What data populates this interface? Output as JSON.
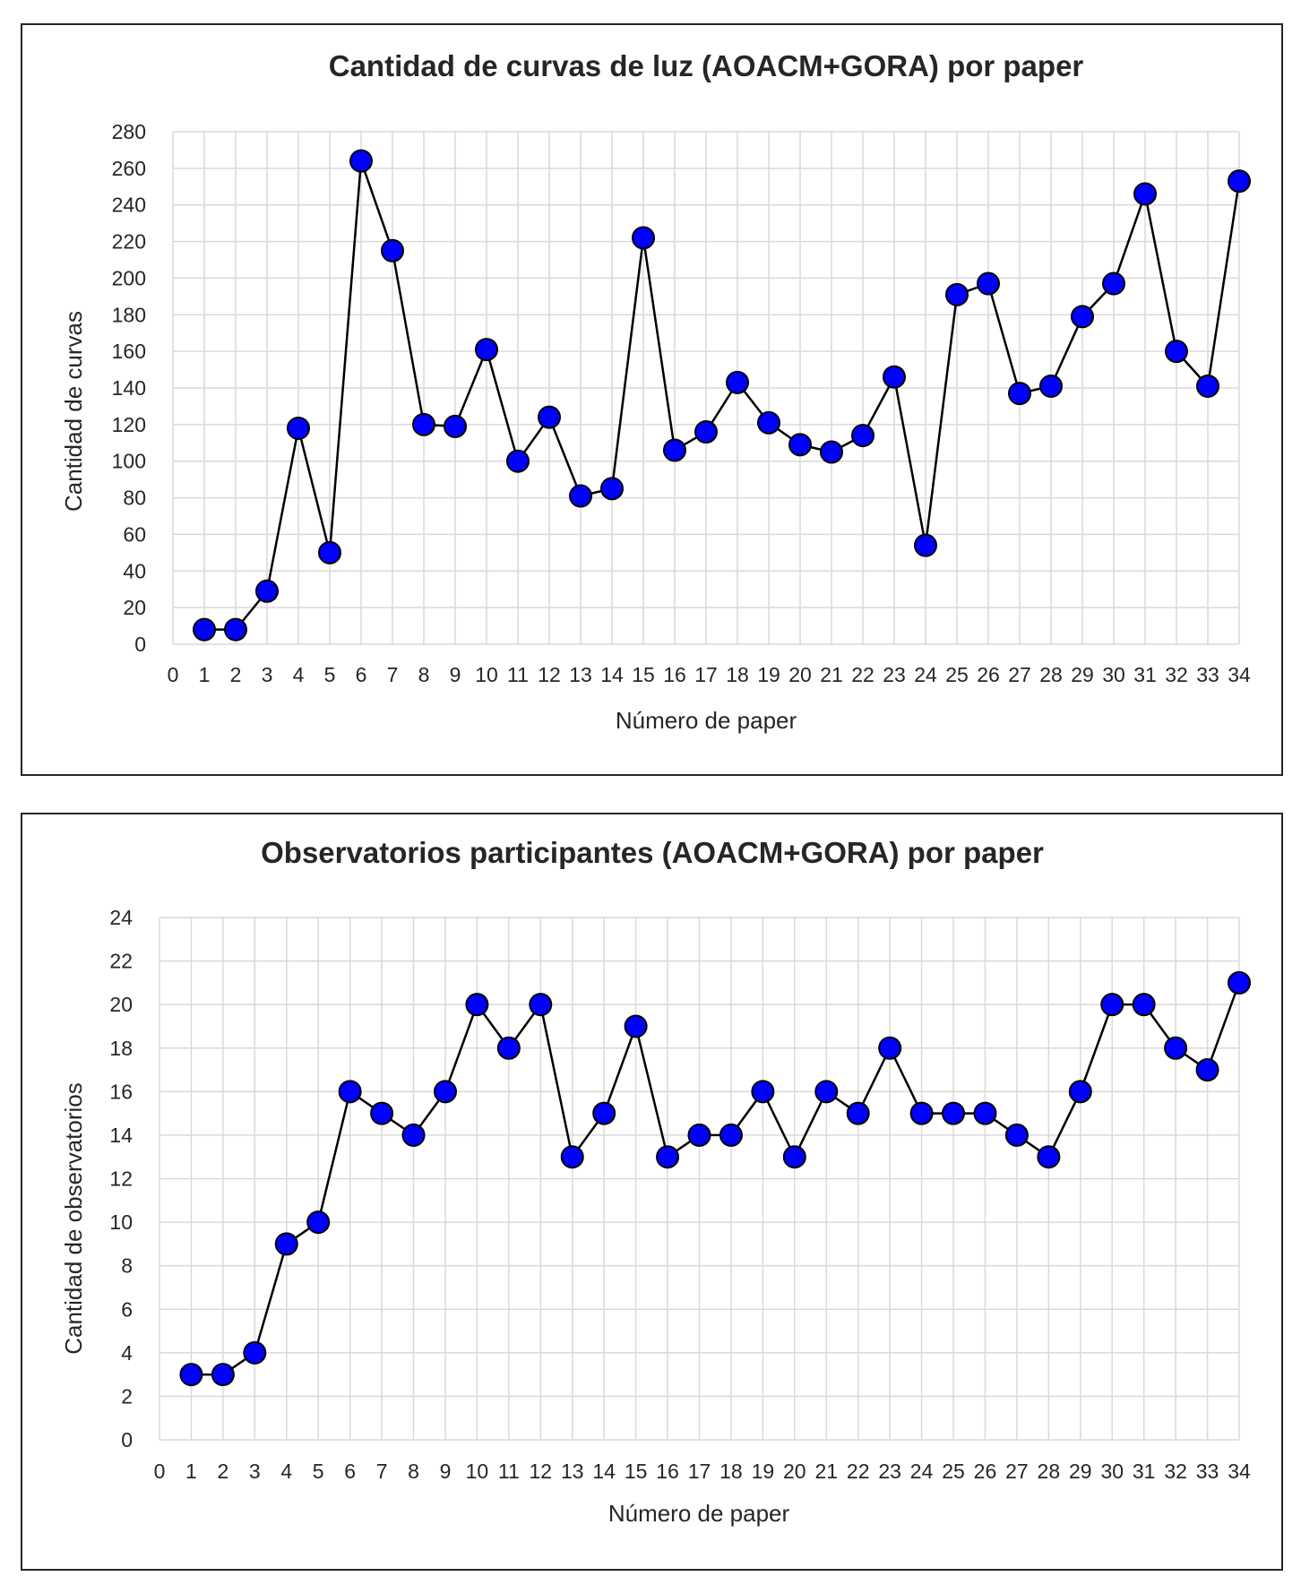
{
  "chart_data": [
    {
      "type": "line",
      "title": "Cantidad de curvas de luz (AOACM+GORA) por paper",
      "xlabel": "Número de paper",
      "ylabel": "Cantidad de curvas",
      "xlim": [
        0,
        34
      ],
      "ylim": [
        0,
        280
      ],
      "ytick_step": 20,
      "grid": true,
      "line_color": "#000000",
      "marker_color": "#0000ff",
      "marker_edge_color": "#000000",
      "x": [
        1,
        2,
        3,
        4,
        5,
        6,
        7,
        8,
        9,
        10,
        11,
        12,
        13,
        14,
        15,
        16,
        17,
        18,
        19,
        20,
        21,
        22,
        23,
        24,
        25,
        26,
        27,
        28,
        29,
        30,
        31,
        32,
        33,
        34
      ],
      "values": [
        8,
        8,
        29,
        118,
        50,
        264,
        215,
        120,
        119,
        161,
        100,
        124,
        81,
        85,
        222,
        106,
        116,
        143,
        121,
        109,
        105,
        114,
        146,
        54,
        191,
        197,
        137,
        141,
        179,
        197,
        246,
        160,
        141,
        253
      ]
    },
    {
      "type": "line",
      "title": "Observatorios participantes (AOACM+GORA) por paper",
      "xlabel": "Número de paper",
      "ylabel": "Cantidad de observatorios",
      "xlim": [
        0,
        34
      ],
      "ylim": [
        0,
        24
      ],
      "ytick_step": 2,
      "grid": true,
      "line_color": "#000000",
      "marker_color": "#0000ff",
      "marker_edge_color": "#000000",
      "x": [
        1,
        2,
        3,
        4,
        5,
        6,
        7,
        8,
        9,
        10,
        11,
        12,
        13,
        14,
        15,
        16,
        17,
        18,
        19,
        20,
        21,
        22,
        23,
        24,
        25,
        26,
        27,
        28,
        29,
        30,
        31,
        32,
        33,
        34
      ],
      "values": [
        3,
        3,
        4,
        9,
        10,
        16,
        15,
        14,
        16,
        20,
        18,
        20,
        13,
        15,
        19,
        13,
        14,
        14,
        16,
        13,
        16,
        15,
        18,
        15,
        15,
        15,
        14,
        13,
        16,
        20,
        20,
        18,
        17,
        21
      ]
    }
  ]
}
